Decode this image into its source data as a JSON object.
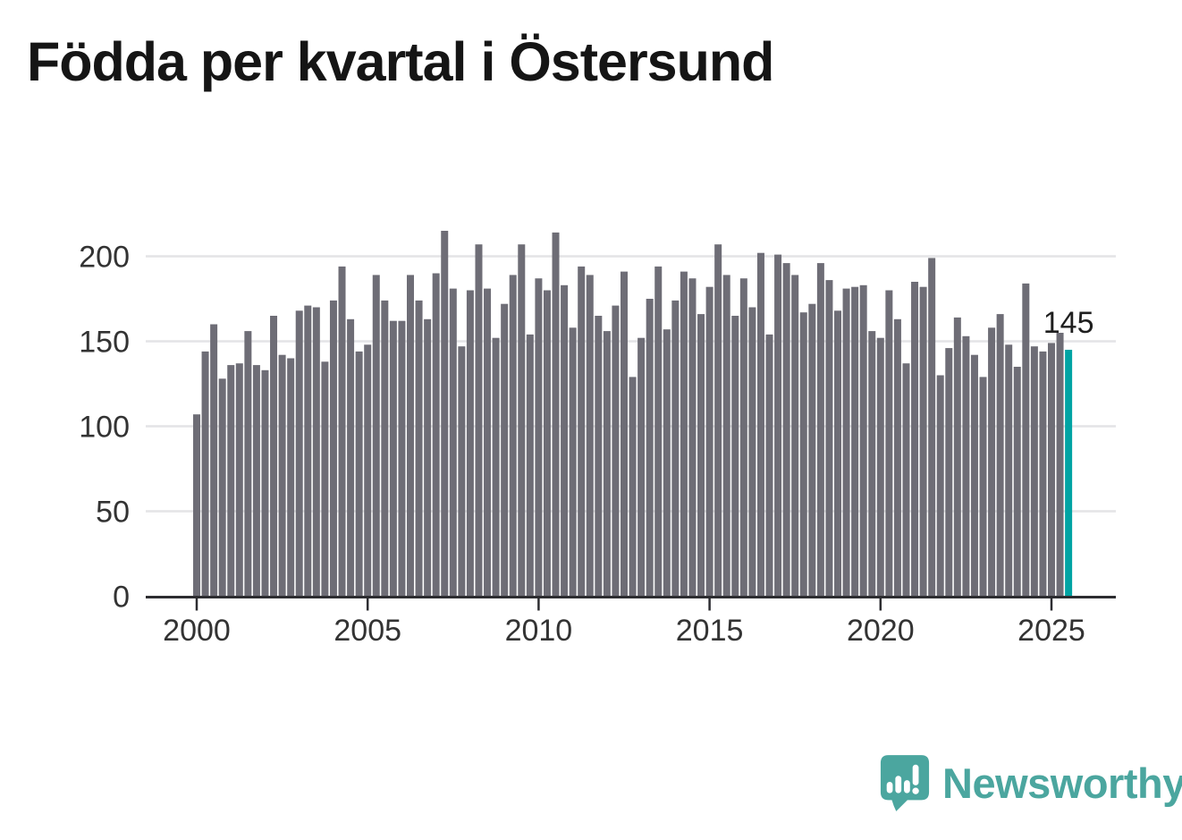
{
  "page": {
    "background": "#ffffff"
  },
  "header": {
    "title": "Födda per kvartal i Östersund"
  },
  "chart_data": {
    "type": "bar",
    "title": "Födda per kvartal i Östersund",
    "xlabel": "",
    "ylabel": "",
    "ylim": [
      0,
      228
    ],
    "grid": true,
    "legend": false,
    "y_ticks": [
      0,
      50,
      100,
      150,
      200
    ],
    "x_tick_labels": [
      "2000",
      "2005",
      "2010",
      "2015",
      "2020",
      "2025"
    ],
    "x_tick_every_n_bars": 20,
    "bar_color": "#6e6d76",
    "grid_color": "#e4e4e6",
    "axis_color": "#2d2d31",
    "tick_label_color": "#333333",
    "value_label_color": "#1f1f1f",
    "categories": [
      "2000 Q1",
      "2000 Q2",
      "2000 Q3",
      "2000 Q4",
      "2001 Q1",
      "2001 Q2",
      "2001 Q3",
      "2001 Q4",
      "2002 Q1",
      "2002 Q2",
      "2002 Q3",
      "2002 Q4",
      "2003 Q1",
      "2003 Q2",
      "2003 Q3",
      "2003 Q4",
      "2004 Q1",
      "2004 Q2",
      "2004 Q3",
      "2004 Q4",
      "2005 Q1",
      "2005 Q2",
      "2005 Q3",
      "2005 Q4",
      "2006 Q1",
      "2006 Q2",
      "2006 Q3",
      "2006 Q4",
      "2007 Q1",
      "2007 Q2",
      "2007 Q3",
      "2007 Q4",
      "2008 Q1",
      "2008 Q2",
      "2008 Q3",
      "2008 Q4",
      "2009 Q1",
      "2009 Q2",
      "2009 Q3",
      "2009 Q4",
      "2010 Q1",
      "2010 Q2",
      "2010 Q3",
      "2010 Q4",
      "2011 Q1",
      "2011 Q2",
      "2011 Q3",
      "2011 Q4",
      "2012 Q1",
      "2012 Q2",
      "2012 Q3",
      "2012 Q4",
      "2013 Q1",
      "2013 Q2",
      "2013 Q3",
      "2013 Q4",
      "2014 Q1",
      "2014 Q2",
      "2014 Q3",
      "2014 Q4",
      "2015 Q1",
      "2015 Q2",
      "2015 Q3",
      "2015 Q4",
      "2016 Q1",
      "2016 Q2",
      "2016 Q3",
      "2016 Q4",
      "2017 Q1",
      "2017 Q2",
      "2017 Q3",
      "2017 Q4",
      "2018 Q1",
      "2018 Q2",
      "2018 Q3",
      "2018 Q4",
      "2019 Q1",
      "2019 Q2",
      "2019 Q3",
      "2019 Q4",
      "2020 Q1",
      "2020 Q2",
      "2020 Q3",
      "2020 Q4",
      "2021 Q1",
      "2021 Q2",
      "2021 Q3",
      "2021 Q4",
      "2022 Q1",
      "2022 Q2",
      "2022 Q3",
      "2022 Q4",
      "2023 Q1",
      "2023 Q2",
      "2023 Q3",
      "2023 Q4",
      "2024 Q1",
      "2024 Q2",
      "2024 Q3",
      "2024 Q4",
      "2025 Q1",
      "2025 Q2",
      "2025 Q3"
    ],
    "values": [
      107,
      144,
      160,
      128,
      136,
      137,
      156,
      136,
      133,
      165,
      142,
      140,
      168,
      171,
      170,
      138,
      174,
      194,
      163,
      144,
      148,
      189,
      174,
      162,
      162,
      189,
      174,
      163,
      190,
      215,
      181,
      147,
      180,
      207,
      181,
      152,
      172,
      189,
      207,
      154,
      187,
      180,
      214,
      183,
      158,
      194,
      189,
      165,
      156,
      171,
      191,
      129,
      152,
      175,
      194,
      157,
      174,
      191,
      187,
      166,
      182,
      207,
      189,
      165,
      187,
      170,
      202,
      154,
      201,
      196,
      189,
      167,
      172,
      196,
      186,
      168,
      181,
      182,
      183,
      156,
      152,
      180,
      163,
      137,
      185,
      182,
      199,
      130,
      146,
      164,
      153,
      142,
      129,
      158,
      166,
      148,
      135,
      184,
      147,
      144,
      149,
      155,
      145
    ],
    "highlight": {
      "index": 102,
      "category": "2025 Q3",
      "value": 145,
      "label": "145",
      "color": "#00a3a3"
    }
  },
  "footer": {
    "brand": "Newsworthy",
    "brand_color": "#4ba69f"
  }
}
